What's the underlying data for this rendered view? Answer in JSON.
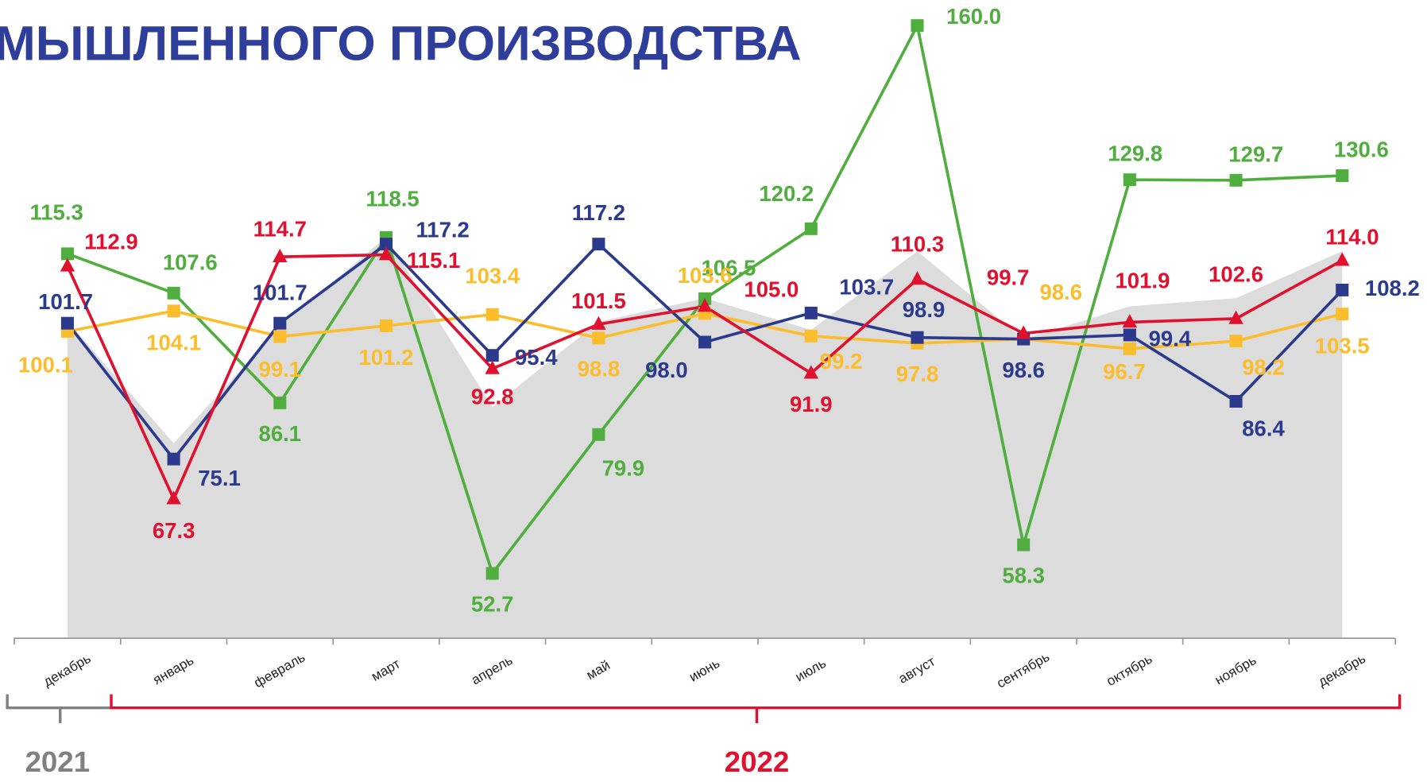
{
  "chart_data": {
    "type": "line",
    "title": "МЫШЛЕННОГО ПРОИЗВОДСТВА",
    "title_color": "#2e3e9a",
    "categories": [
      "декабрь",
      "январь",
      "февраль",
      "март",
      "апрель",
      "май",
      "июнь",
      "июль",
      "август",
      "сентябрь",
      "октябрь",
      "ноябрь",
      "декабрь"
    ],
    "groups": [
      {
        "label": "2021",
        "color": "#808080"
      },
      {
        "label": "2022",
        "color": "#e0102f"
      }
    ],
    "ylim": [
      40,
      165
    ],
    "background_area": {
      "color": "#dcdcdc",
      "values": [
        102.1,
        78.2,
        101,
        118.6,
        85.3,
        102,
        106.6,
        100.4,
        115.8,
        98.6,
        105,
        106.6,
        115.8
      ]
    },
    "series": [
      {
        "name": "green",
        "color": "#4fae3e",
        "marker": "square",
        "values": [
          115.3,
          107.6,
          86.1,
          118.5,
          52.7,
          79.9,
          106.5,
          120.2,
          160.0,
          58.3,
          129.8,
          129.7,
          130.6
        ],
        "value_labels": [
          "115.3",
          "107.6",
          "86.1",
          "118.5",
          "52.7",
          "79.9",
          "106.5",
          "120.2",
          "160.0",
          "58.3",
          "129.8",
          "129.7",
          "130.6"
        ]
      },
      {
        "name": "yellow",
        "color": "#fbbd2c",
        "marker": "square",
        "values": [
          100.1,
          104.1,
          99.1,
          101.2,
          103.4,
          98.8,
          103.6,
          99.2,
          97.8,
          98.6,
          96.7,
          98.2,
          103.5
        ],
        "value_labels": [
          "100.1",
          "104.1",
          "99.1",
          "101.2",
          "103.4",
          "98.8",
          "103.6",
          "99.2",
          "97.8",
          "98.6",
          "96.7",
          "98.2",
          "103.5"
        ]
      },
      {
        "name": "blue",
        "color": "#2b3a8c",
        "marker": "square",
        "values": [
          101.7,
          75.1,
          101.7,
          117.2,
          95.4,
          117.2,
          98.0,
          103.7,
          98.9,
          98.6,
          99.4,
          86.4,
          108.2
        ],
        "value_labels": [
          "101.7",
          "75.1",
          "101.7",
          "117.2",
          "95.4",
          "117.2",
          "98.0",
          "103.7",
          "98.9",
          "98.6",
          "99.4",
          "86.4",
          "108.2"
        ]
      },
      {
        "name": "red",
        "color": "#e0102f",
        "marker": "triangle",
        "values": [
          112.9,
          67.3,
          114.7,
          115.1,
          92.8,
          101.5,
          105.0,
          91.9,
          110.3,
          99.7,
          101.9,
          102.6,
          114.0
        ],
        "value_labels": [
          "112.9",
          "67.3",
          "114.7",
          "115.1",
          "92.8",
          "101.5",
          "105.0",
          "91.9",
          "110.3",
          "99.7",
          "101.9",
          "102.6",
          "114.0"
        ]
      }
    ]
  }
}
